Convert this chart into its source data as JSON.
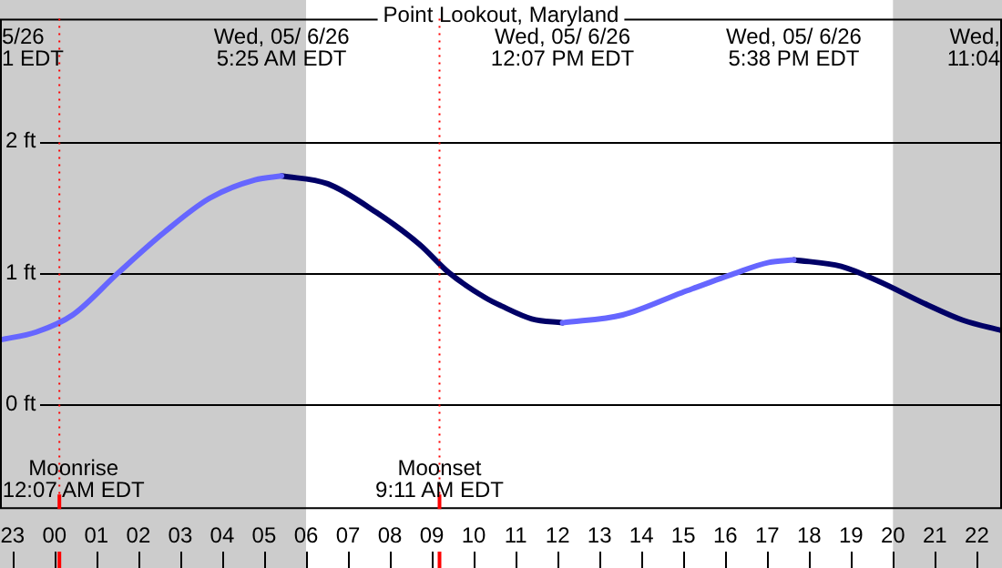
{
  "chart_data": {
    "type": "line",
    "title": "Point Lookout, Maryland",
    "xlim": [
      "--05-05T22:42",
      "--05-06T22:36"
    ],
    "xticks": [
      {
        "value": "--05-05T23:00",
        "label": "23"
      },
      {
        "value": "--05-06T00:00",
        "label": "00"
      },
      {
        "value": "--05-06T01:00",
        "label": "01"
      },
      {
        "value": "--05-06T02:00",
        "label": "02"
      },
      {
        "value": "--05-06T03:00",
        "label": "03"
      },
      {
        "value": "--05-06T04:00",
        "label": "04"
      },
      {
        "value": "--05-06T05:00",
        "label": "05"
      },
      {
        "value": "--05-06T06:00",
        "label": "06"
      },
      {
        "value": "--05-06T07:00",
        "label": "07"
      },
      {
        "value": "--05-06T08:00",
        "label": "08"
      },
      {
        "value": "--05-06T09:00",
        "label": "09"
      },
      {
        "value": "--05-06T10:00",
        "label": "10"
      },
      {
        "value": "--05-06T11:00",
        "label": "11"
      },
      {
        "value": "--05-06T12:00",
        "label": "12"
      },
      {
        "value": "--05-06T13:00",
        "label": "13"
      },
      {
        "value": "--05-06T14:00",
        "label": "14"
      },
      {
        "value": "--05-06T15:00",
        "label": "15"
      },
      {
        "value": "--05-06T16:00",
        "label": "16"
      },
      {
        "value": "--05-06T17:00",
        "label": "17"
      },
      {
        "value": "--05-06T18:00",
        "label": "18"
      },
      {
        "value": "--05-06T19:00",
        "label": "19"
      },
      {
        "value": "--05-06T20:00",
        "label": "20"
      },
      {
        "value": "--05-06T21:00",
        "label": "21"
      },
      {
        "value": "--05-06T22:00",
        "label": "22"
      }
    ],
    "ylim": [
      -0.8,
      2.94
    ],
    "yticks": [
      {
        "value": 0,
        "label": "0 ft"
      },
      {
        "value": 1,
        "label": "1 ft"
      },
      {
        "value": 2,
        "label": "2 ft"
      }
    ],
    "grid": "y",
    "marker": "none",
    "line_style": "solid",
    "bands": [
      {
        "axis": "x",
        "from": "--05-05T22:42",
        "to": "--05-06T06:00",
        "color": "#cccccc"
      },
      {
        "axis": "x",
        "from": "--05-06T20:00",
        "to": "--05-06T22:36",
        "color": "#cccccc"
      }
    ],
    "ref_lines": [
      {
        "axis": "x",
        "value": "--05-06T00:07",
        "label": "Moonrise\n12:07 AM EDT",
        "color": "#ff0000"
      },
      {
        "axis": "x",
        "value": "--05-06T09:11",
        "label": "Moonset\n9:11 AM EDT",
        "color": "#ff0000"
      }
    ],
    "annotations": [
      "Wed, 05/ 6/26\n5:25 AM EDT",
      "Wed, 05/ 6/26\n12:07 PM EDT",
      "Wed, 05/ 6/26\n5:38 PM EDT",
      "5/26\n1 EDT",
      "Wed,\n11:04"
    ],
    "series": [
      {
        "color": "#6666ff",
        "x": [
          "--05-05T22:42",
          "--05-05T23:34",
          "--05-06T00:26",
          "--05-06T01:31",
          "--05-06T02:37",
          "--05-06T03:42",
          "--05-06T04:47",
          "--05-06T05:25",
          "--05-06T09:00",
          "--05-06T12:07",
          "--05-06T13:33",
          "--05-06T14:58",
          "--05-06T16:10",
          "--05-06T17:02",
          "--05-06T17:38"
        ],
        "values": [
          0.49,
          0.55,
          0.68,
          1.0,
          1.31,
          1.57,
          1.71,
          1.74,
          null,
          0.62,
          0.68,
          0.85,
          0.99,
          1.08,
          1.1
        ]
      },
      {
        "color": "#000066",
        "x": [
          "--05-06T05:25",
          "--05-06T06:31",
          "--05-06T07:41",
          "--05-06T08:42",
          "--05-06T09:25",
          "--05-06T10:17",
          "--05-06T10:39",
          "--05-06T11:23",
          "--05-06T12:07",
          "--05-06T15:00",
          "--05-06T17:38",
          "--05-06T18:46",
          "--05-06T19:38",
          "--05-06T20:48",
          "--05-06T21:40",
          "--05-06T22:36"
        ],
        "values": [
          1.74,
          1.68,
          1.46,
          1.22,
          1.0,
          0.81,
          0.75,
          0.65,
          0.62,
          null,
          1.1,
          1.05,
          0.94,
          0.76,
          0.64,
          0.56
        ]
      }
    ]
  }
}
